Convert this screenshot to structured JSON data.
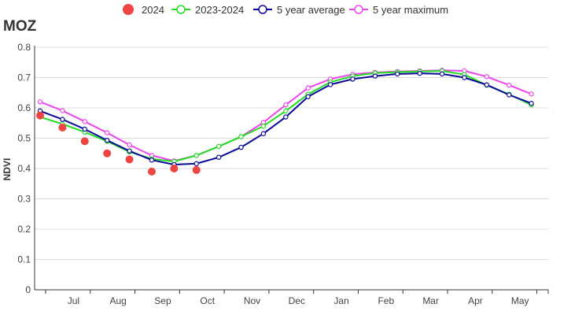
{
  "chart_data": {
    "type": "line",
    "title": "MOZ",
    "ylabel": "NDVI",
    "xlabel": "",
    "ylim": [
      0,
      0.8
    ],
    "yticks": [
      "0",
      "0.1",
      "0.2",
      "0.3",
      "0.4",
      "0.5",
      "0.6",
      "0.7",
      "0.8"
    ],
    "month_labels": [
      "Jul",
      "Aug",
      "Sep",
      "Oct",
      "Nov",
      "Dec",
      "Jan",
      "Feb",
      "Mar",
      "Apr",
      "May"
    ],
    "grid": true,
    "legend_position": "top-center",
    "x": [
      "Jul-1",
      "Jul-2",
      "Aug-1",
      "Aug-2",
      "Sep-1",
      "Sep-2",
      "Oct-1",
      "Oct-2",
      "Nov-1",
      "Nov-2",
      "Dec-1",
      "Dec-2",
      "Jan-1",
      "Jan-2",
      "Feb-1",
      "Feb-2",
      "Mar-1",
      "Mar-2",
      "Apr-1",
      "Apr-2",
      "May-1",
      "May-2",
      "Jun-1"
    ],
    "series": [
      {
        "name": "2024",
        "style": "dots",
        "color": "#ef4444",
        "values": [
          0.575,
          0.535,
          0.49,
          0.45,
          0.43,
          0.39,
          0.4,
          0.395,
          null,
          null,
          null,
          null,
          null,
          null,
          null,
          null,
          null,
          null,
          null,
          null,
          null,
          null,
          null
        ]
      },
      {
        "name": "2023-2024",
        "style": "line",
        "color": "#22dd22",
        "values": [
          0.57,
          0.547,
          0.52,
          0.49,
          0.455,
          0.432,
          0.423,
          0.443,
          0.473,
          0.505,
          0.54,
          0.59,
          0.645,
          0.685,
          0.705,
          0.715,
          0.718,
          0.72,
          0.722,
          0.71,
          0.675,
          0.645,
          0.61
        ]
      },
      {
        "name": "5 year average",
        "style": "line",
        "color": "#0a0a9a",
        "values": [
          0.59,
          0.562,
          0.53,
          0.493,
          0.458,
          0.428,
          0.413,
          0.416,
          0.437,
          0.47,
          0.515,
          0.57,
          0.637,
          0.677,
          0.695,
          0.705,
          0.712,
          0.714,
          0.712,
          0.7,
          0.676,
          0.643,
          0.615
        ]
      },
      {
        "name": "5 year maximum",
        "style": "line",
        "color": "#ee44ee",
        "values": [
          0.62,
          0.591,
          0.555,
          0.518,
          0.478,
          0.443,
          0.425,
          0.443,
          0.473,
          0.505,
          0.552,
          0.61,
          0.666,
          0.695,
          0.711,
          0.717,
          0.72,
          0.722,
          0.724,
          0.722,
          0.703,
          0.675,
          0.646
        ]
      }
    ]
  }
}
